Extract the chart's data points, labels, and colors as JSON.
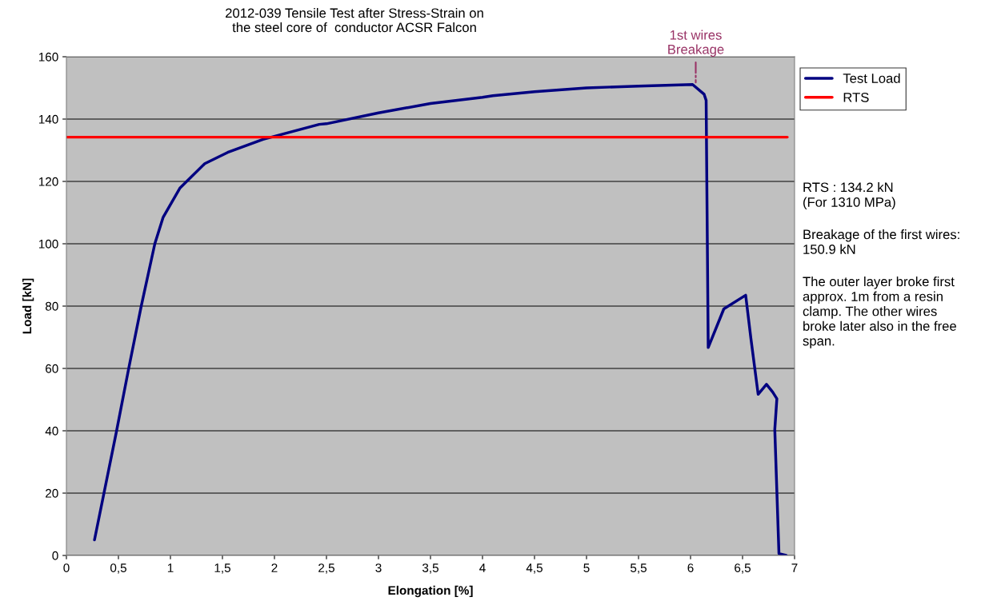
{
  "chart_data": {
    "type": "line",
    "title": "2012-039 Tensile Test after Stress-Strain on\nthe steel core of  conductor ACSR Falcon",
    "xlabel": "Elongation [%]",
    "ylabel": "Load [kN]",
    "series": [
      {
        "name": "Test Load",
        "color": "#000080",
        "x": [
          0.27,
          0.48,
          0.6,
          0.72,
          0.85,
          0.93,
          1.09,
          1.33,
          1.55,
          1.89,
          2.43,
          2.5,
          3.0,
          3.5,
          4.0,
          4.1,
          4.5,
          5.0,
          5.5,
          6.02,
          6.13,
          6.15,
          6.17,
          6.32,
          6.53,
          6.58,
          6.65,
          6.73,
          6.79,
          6.83,
          6.81,
          6.85,
          6.92
        ],
        "values": [
          5,
          39.6,
          60.2,
          80.1,
          100,
          108.5,
          117.8,
          125.7,
          129.3,
          133.5,
          138.3,
          138.5,
          142,
          145,
          147,
          147.5,
          148.8,
          150,
          150.6,
          151.1,
          148,
          146,
          66.7,
          79.1,
          83.5,
          69.7,
          51.7,
          54.9,
          52.4,
          50.3,
          40.4,
          0.6,
          0
        ]
      },
      {
        "name": "RTS",
        "color": "#ff0000",
        "x": [
          0,
          6.93
        ],
        "values": [
          134.2,
          134.2
        ]
      }
    ],
    "xlim": [
      0,
      7
    ],
    "ylim": [
      0,
      160
    ],
    "xticks": [
      0,
      {
        "value": 0.5,
        "label": "0,5"
      },
      1,
      {
        "value": 1.5,
        "label": "1,5"
      },
      2,
      {
        "value": 2.5,
        "label": "2,5"
      },
      3,
      {
        "value": 3.5,
        "label": "3,5"
      },
      4,
      {
        "value": 4.5,
        "label": "4,5"
      },
      5,
      {
        "value": 5.5,
        "label": "5,5"
      },
      6,
      {
        "value": 6.5,
        "label": "6,5"
      },
      7
    ],
    "yticks": [
      0,
      20,
      40,
      60,
      80,
      100,
      120,
      140,
      160
    ],
    "grid": "y",
    "legend": "top right",
    "line_style": "solid",
    "marker": "none",
    "annotations": [
      {
        "text": "1st wires\nBreakage",
        "x": 6.05,
        "y": 151
      },
      "RTS : 134.2 kN\n(For 1310 MPa)",
      "Breakage of the first wires:\n150.9 kN",
      "The outer layer broke first\napprox. 1m from a resin\nclamp. The other wires\nbroke later also in the free\nspan."
    ]
  }
}
